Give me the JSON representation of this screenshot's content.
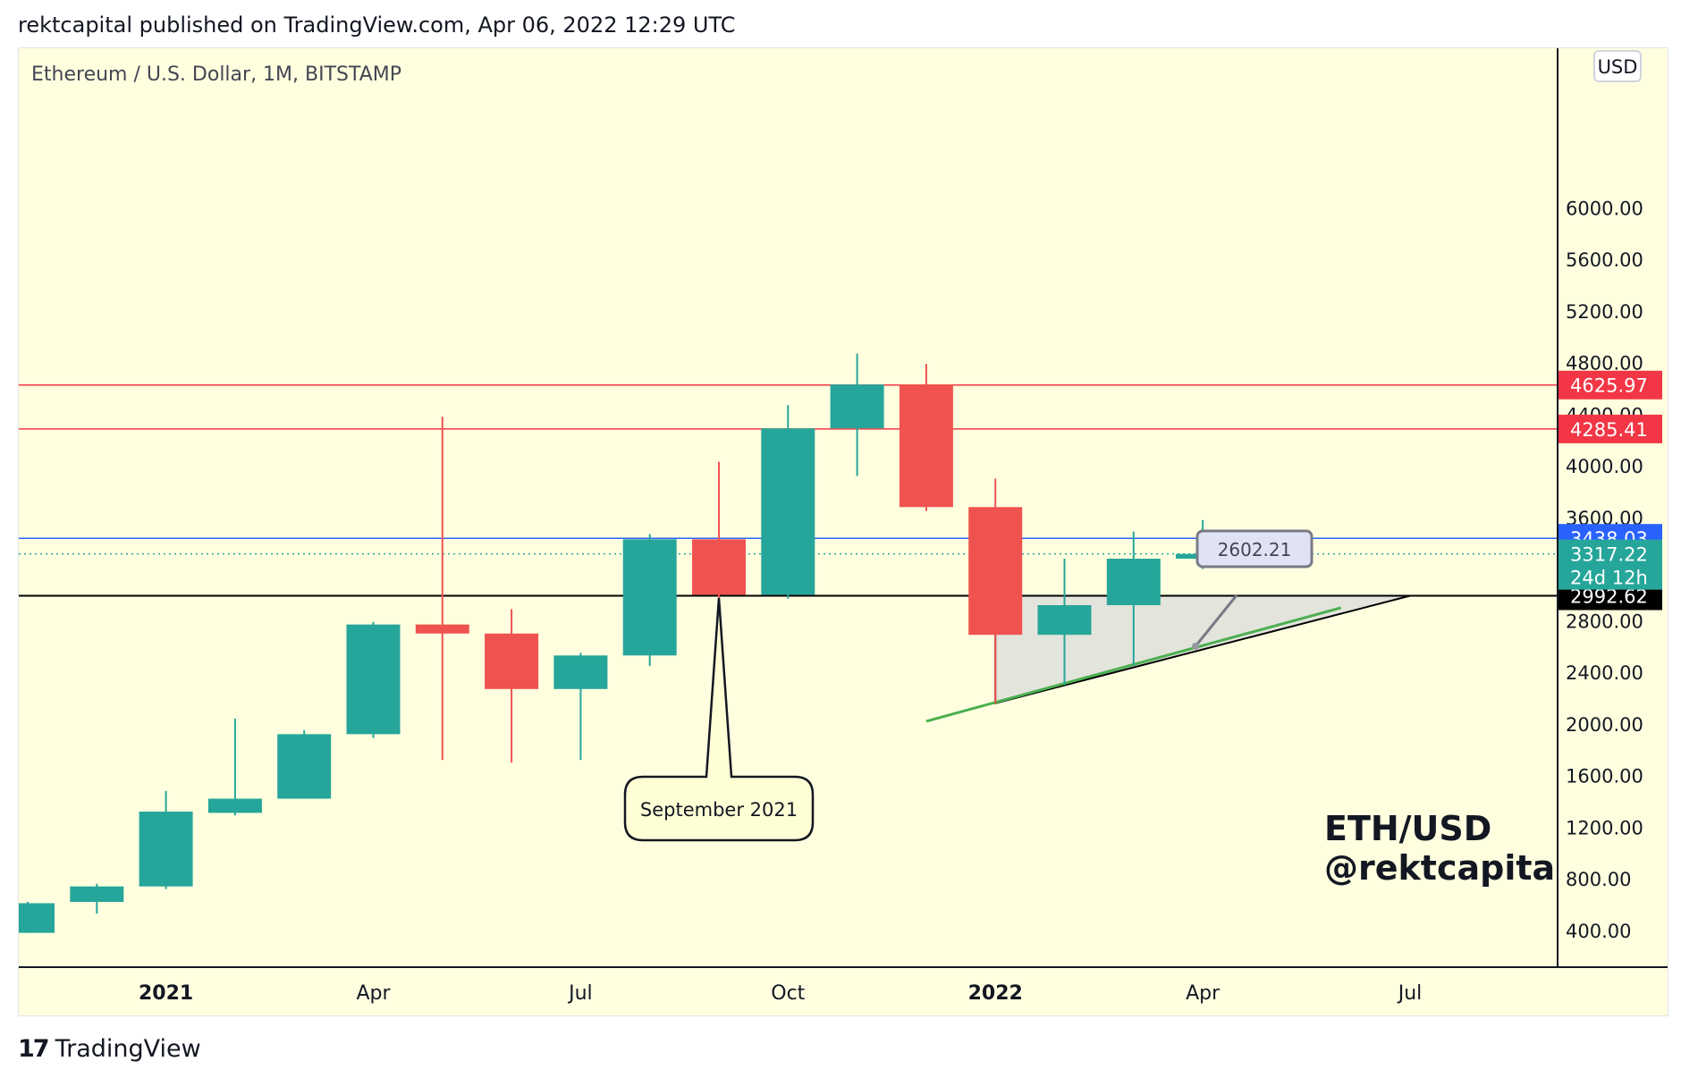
{
  "header": {
    "text": "rektcapital published on TradingView.com, Apr 06, 2022 12:29 UTC"
  },
  "footer": {
    "logo_glyph": "17",
    "brand": "TradingView"
  },
  "colors": {
    "background": "#ffffe0",
    "bullish": "#26a69a",
    "bearish": "#ef5350",
    "resistance": "#f23645",
    "support_blue": "#2962ff",
    "neckline": "#000000",
    "trendline": "#4caf50",
    "triangle_fill": "#e3e4dc"
  },
  "chart_data": {
    "type": "candlestick",
    "title": "Ethereum / U.S. Dollar, 1M, BITSTAMP",
    "currency_badge": "USD",
    "watermark": [
      "ETH/USD",
      "@rektcapital"
    ],
    "y_ticks": [
      "6000.00",
      "5600.00",
      "5200.00",
      "4800.00",
      "4400.00",
      "4000.00",
      "3600.00",
      "2800.00",
      "2400.00",
      "2000.00",
      "1600.00",
      "1200.00",
      "800.00",
      "400.00"
    ],
    "x_ticks": [
      {
        "label": "2021",
        "bold": true,
        "date": "2021-01"
      },
      {
        "label": "Apr",
        "bold": false,
        "date": "2021-04"
      },
      {
        "label": "Jul",
        "bold": false,
        "date": "2021-07"
      },
      {
        "label": "Oct",
        "bold": false,
        "date": "2021-10"
      },
      {
        "label": "2022",
        "bold": true,
        "date": "2022-01"
      },
      {
        "label": "Apr",
        "bold": false,
        "date": "2022-04"
      },
      {
        "label": "Jul",
        "bold": false,
        "date": "2022-07"
      }
    ],
    "candles": [
      {
        "date": "2020-11",
        "open": 380,
        "high": 620,
        "low": 380,
        "close": 610
      },
      {
        "date": "2020-12",
        "open": 620,
        "high": 760,
        "low": 530,
        "close": 740
      },
      {
        "date": "2021-01",
        "open": 740,
        "high": 1480,
        "low": 720,
        "close": 1320
      },
      {
        "date": "2021-02",
        "open": 1310,
        "high": 2040,
        "low": 1290,
        "close": 1420
      },
      {
        "date": "2021-03",
        "open": 1420,
        "high": 1950,
        "low": 1430,
        "close": 1920
      },
      {
        "date": "2021-04",
        "open": 1920,
        "high": 2790,
        "low": 1890,
        "close": 2770
      },
      {
        "date": "2021-05",
        "open": 2770,
        "high": 4380,
        "low": 1720,
        "close": 2700
      },
      {
        "date": "2021-06",
        "open": 2700,
        "high": 2890,
        "low": 1700,
        "close": 2270
      },
      {
        "date": "2021-07",
        "open": 2270,
        "high": 2550,
        "low": 1720,
        "close": 2530
      },
      {
        "date": "2021-08",
        "open": 2530,
        "high": 3470,
        "low": 2450,
        "close": 3430
      },
      {
        "date": "2021-09",
        "open": 3430,
        "high": 4030,
        "low": 2650,
        "close": 3000
      },
      {
        "date": "2021-10",
        "open": 3000,
        "high": 4470,
        "low": 2970,
        "close": 4290
      },
      {
        "date": "2021-11",
        "open": 4290,
        "high": 4870,
        "low": 3920,
        "close": 4630
      },
      {
        "date": "2021-12",
        "open": 4630,
        "high": 4790,
        "low": 3650,
        "close": 3680
      },
      {
        "date": "2022-01",
        "open": 3680,
        "high": 3900,
        "low": 2160,
        "close": 2690
      },
      {
        "date": "2022-02",
        "open": 2690,
        "high": 3280,
        "low": 2300,
        "close": 2920
      },
      {
        "date": "2022-03",
        "open": 2920,
        "high": 3490,
        "low": 2450,
        "close": 3280
      },
      {
        "date": "2022-04",
        "open": 3280,
        "high": 3580,
        "low": 3200,
        "close": 3317
      }
    ],
    "horizontal_levels": [
      {
        "value": 4625.97,
        "label": "4625.97",
        "kind": "resistance"
      },
      {
        "value": 4285.41,
        "label": "4285.41",
        "kind": "resistance"
      },
      {
        "value": 3438.03,
        "label": "3438.03",
        "kind": "support_blue"
      },
      {
        "value": 2992.62,
        "label": "2992.62",
        "kind": "neckline"
      }
    ],
    "current_price": {
      "value": 3317.22,
      "label": "3317.22",
      "countdown": "24d 12h"
    },
    "callout": {
      "text": "September 2021",
      "date": "2021-09"
    },
    "price_label": {
      "text": "2602.21",
      "value": 2602.21
    },
    "ascending_triangle": {
      "apex": {
        "date": "2022-07",
        "value": 2992.62
      },
      "base_top": {
        "date": "2022-01",
        "value": 2992.62
      },
      "base_bottom": {
        "date": "2022-01",
        "value": 2160
      }
    },
    "trendline": {
      "start": {
        "date": "2021-12",
        "value": 2020
      },
      "end": {
        "date": "2022-06",
        "value": 2900
      }
    }
  }
}
